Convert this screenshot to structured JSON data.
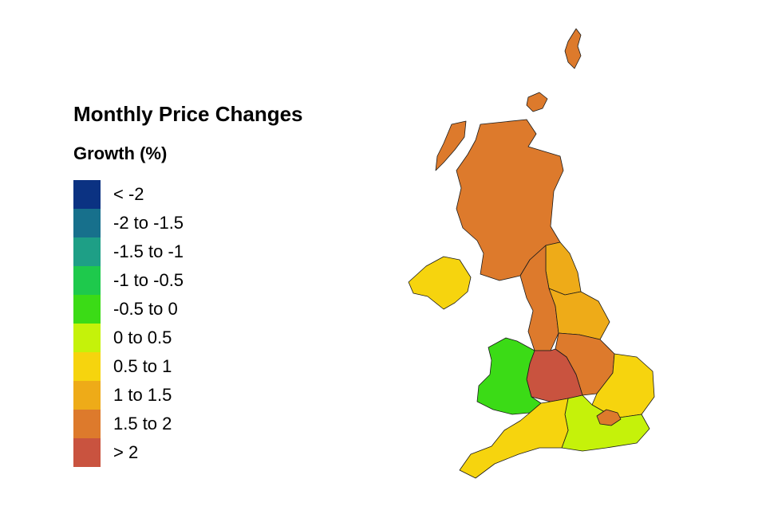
{
  "title": "Monthly Price Changes",
  "subtitle": "Growth (%)",
  "legend": [
    {
      "label": "< -2",
      "color": "#0b3282"
    },
    {
      "label": "-2 to -1.5",
      "color": "#17708c"
    },
    {
      "label": "-1.5 to -1",
      "color": "#1e9f86"
    },
    {
      "label": "-1 to -0.5",
      "color": "#1ec94c"
    },
    {
      "label": "-0.5 to 0",
      "color": "#3bdb16"
    },
    {
      "label": "0 to 0.5",
      "color": "#c5f20a"
    },
    {
      "label": "0.5 to 1",
      "color": "#f6d40e"
    },
    {
      "label": "1 to 1.5",
      "color": "#eeab18"
    },
    {
      "label": "1.5 to 2",
      "color": "#dd7a2c"
    },
    {
      "label": "> 2",
      "color": "#c9533f"
    }
  ],
  "regions": [
    {
      "name": "scotland",
      "band": "1.5 to 2"
    },
    {
      "name": "northern-ireland",
      "band": "0.5 to 1"
    },
    {
      "name": "north-east",
      "band": "1 to 1.5"
    },
    {
      "name": "north-west",
      "band": "1.5 to 2"
    },
    {
      "name": "yorkshire-and-the-humber",
      "band": "1 to 1.5"
    },
    {
      "name": "east-midlands",
      "band": "1.5 to 2"
    },
    {
      "name": "west-midlands",
      "band": "> 2"
    },
    {
      "name": "wales",
      "band": "-0.5 to 0"
    },
    {
      "name": "east-of-england",
      "band": "0.5 to 1"
    },
    {
      "name": "london",
      "band": "1.5 to 2"
    },
    {
      "name": "south-east",
      "band": "0 to 0.5"
    },
    {
      "name": "south-west",
      "band": "0.5 to 1"
    }
  ]
}
